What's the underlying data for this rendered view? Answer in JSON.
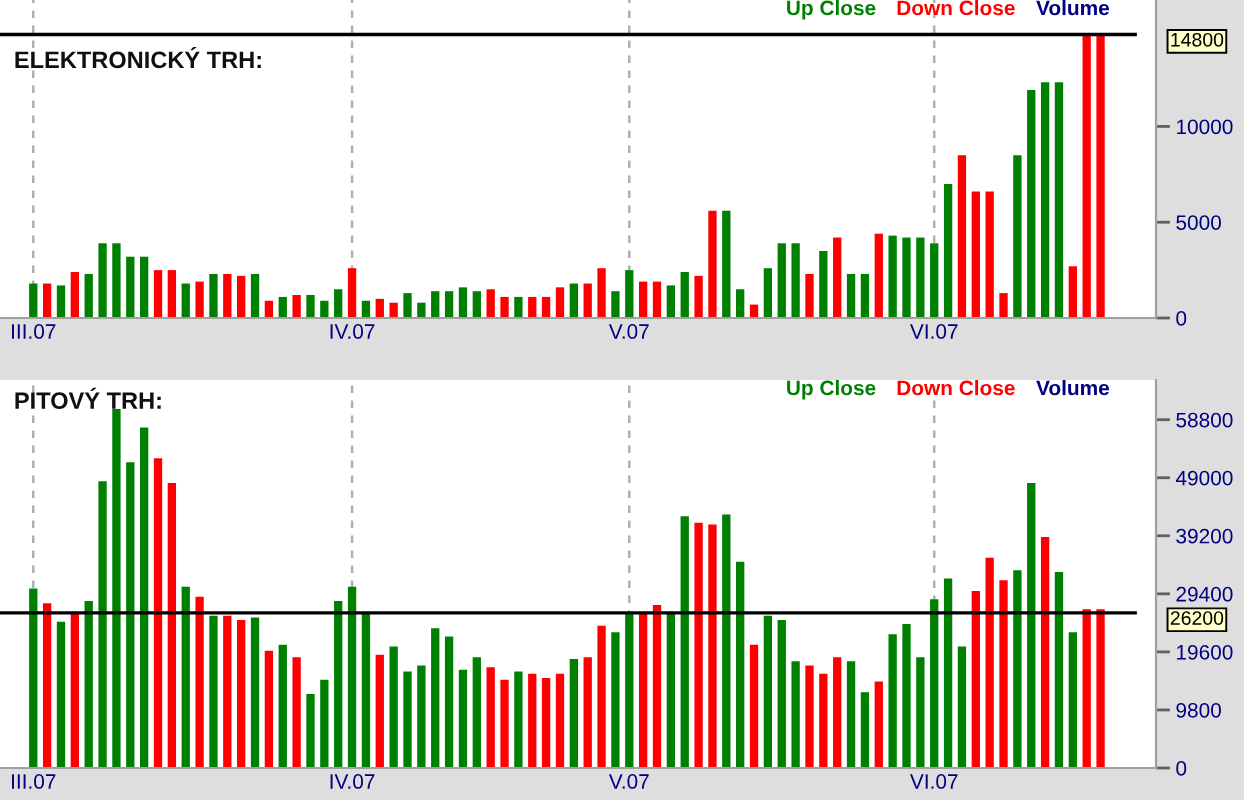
{
  "chart_data": [
    {
      "type": "bar",
      "title": "ELEKTRONICKÝ TRH:",
      "legend": "top right",
      "legend_title": "Volume",
      "grid": "x",
      "categories": [
        "III.07",
        null,
        null,
        null,
        null,
        null,
        null,
        null,
        null,
        null,
        null,
        null,
        null,
        null,
        null,
        null,
        null,
        null,
        null,
        null,
        null,
        null,
        null,
        "IV.07",
        null,
        null,
        null,
        null,
        null,
        null,
        null,
        null,
        null,
        null,
        null,
        null,
        null,
        null,
        null,
        null,
        null,
        null,
        null,
        "V.07",
        null,
        null,
        null,
        null,
        null,
        null,
        null,
        null,
        null,
        null,
        null,
        null,
        null,
        null,
        null,
        null,
        null,
        null,
        null,
        null,
        null,
        "VI.07",
        null,
        null,
        null,
        null,
        null,
        null,
        null,
        null,
        null,
        null,
        null,
        null
      ],
      "series": [
        {
          "name": "Up Close",
          "color": "#008000",
          "values": [
            1800,
            null,
            1700,
            null,
            2300,
            3900,
            3900,
            3200,
            3200,
            null,
            null,
            1800,
            null,
            2300,
            null,
            null,
            2300,
            null,
            1100,
            null,
            1200,
            900,
            1500,
            null,
            900,
            null,
            null,
            1300,
            800,
            1400,
            1400,
            1600,
            1400,
            null,
            null,
            1100,
            null,
            null,
            null,
            1800,
            null,
            null,
            1400,
            2500,
            null,
            null,
            1700,
            2400,
            null,
            null,
            5600,
            1500,
            null,
            2600,
            3900,
            3900,
            null,
            3500,
            null,
            2300,
            2300,
            null,
            4300,
            4200,
            4200,
            3900,
            7000,
            null,
            null,
            null,
            null,
            8500,
            11900,
            12300,
            12300,
            null,
            null,
            null
          ]
        },
        {
          "name": "Down Close",
          "color": "#ff0000",
          "values": [
            null,
            1800,
            null,
            2400,
            null,
            null,
            null,
            null,
            null,
            2500,
            2500,
            null,
            1900,
            null,
            2300,
            2200,
            null,
            900,
            null,
            1200,
            null,
            null,
            null,
            2600,
            null,
            1000,
            800,
            null,
            null,
            null,
            null,
            null,
            null,
            1500,
            1100,
            null,
            1100,
            1100,
            1600,
            null,
            1800,
            2600,
            null,
            null,
            1900,
            1900,
            null,
            null,
            2200,
            5600,
            null,
            null,
            700,
            null,
            null,
            null,
            2300,
            null,
            4200,
            null,
            null,
            4400,
            null,
            null,
            null,
            null,
            null,
            8500,
            6600,
            6600,
            1300,
            null,
            null,
            null,
            null,
            2700,
            14800,
            14800
          ]
        }
      ],
      "ylim": [
        0,
        16600
      ],
      "yticks": [
        0,
        5000,
        10000
      ],
      "ref_lines": [
        {
          "axis": "y",
          "value": 14800,
          "label": "14800",
          "color": "#000000"
        }
      ]
    },
    {
      "type": "bar",
      "title": "PITOVÝ TRH:",
      "legend": "top right",
      "legend_title": "Volume",
      "grid": "x",
      "categories": [
        "III.07",
        null,
        null,
        null,
        null,
        null,
        null,
        null,
        null,
        null,
        null,
        null,
        null,
        null,
        null,
        null,
        null,
        null,
        null,
        null,
        null,
        null,
        null,
        "IV.07",
        null,
        null,
        null,
        null,
        null,
        null,
        null,
        null,
        null,
        null,
        null,
        null,
        null,
        null,
        null,
        null,
        null,
        null,
        null,
        "V.07",
        null,
        null,
        null,
        null,
        null,
        null,
        null,
        null,
        null,
        null,
        null,
        null,
        null,
        null,
        null,
        null,
        null,
        null,
        null,
        null,
        null,
        "VI.07",
        null,
        null,
        null,
        null,
        null,
        null,
        null,
        null,
        null,
        null,
        null,
        null
      ],
      "series": [
        {
          "name": "Up Close",
          "color": "#008000",
          "values": [
            30300,
            null,
            24700,
            null,
            28200,
            48400,
            60600,
            51600,
            57500,
            null,
            null,
            30600,
            null,
            25700,
            null,
            null,
            25400,
            null,
            20800,
            null,
            12500,
            14900,
            28200,
            30600,
            26100,
            null,
            20500,
            16300,
            17300,
            23600,
            22200,
            16600,
            18700,
            null,
            null,
            16300,
            null,
            null,
            null,
            18400,
            null,
            null,
            22900,
            26100,
            null,
            null,
            26100,
            42500,
            null,
            null,
            42800,
            34800,
            null,
            25700,
            25000,
            18000,
            null,
            null,
            null,
            18000,
            12800,
            null,
            22600,
            24300,
            18700,
            28500,
            32000,
            20500,
            null,
            null,
            null,
            33400,
            48100,
            null,
            33100,
            22900,
            null,
            null
          ]
        },
        {
          "name": "Down Close",
          "color": "#ff0000",
          "values": [
            null,
            27800,
            null,
            26100,
            null,
            null,
            null,
            null,
            null,
            52300,
            48100,
            null,
            28900,
            null,
            25700,
            25000,
            null,
            19800,
            null,
            18700,
            null,
            null,
            null,
            null,
            null,
            19100,
            null,
            null,
            null,
            null,
            null,
            null,
            null,
            17000,
            14900,
            null,
            15900,
            15200,
            15900,
            null,
            18700,
            24000,
            null,
            null,
            26100,
            27500,
            null,
            null,
            41400,
            41100,
            null,
            null,
            20800,
            null,
            null,
            null,
            17300,
            15900,
            18700,
            null,
            null,
            14600,
            null,
            null,
            null,
            null,
            null,
            null,
            29900,
            35500,
            31700,
            null,
            null,
            39000,
            null,
            null,
            26800,
            26800
          ]
        }
      ],
      "ylim": [
        0,
        65500
      ],
      "yticks": [
        0,
        9800,
        19600,
        29400,
        39200,
        49000,
        58800
      ],
      "ref_lines": [
        {
          "axis": "y",
          "value": 26200,
          "label": "26200",
          "color": "#000000"
        }
      ]
    }
  ]
}
